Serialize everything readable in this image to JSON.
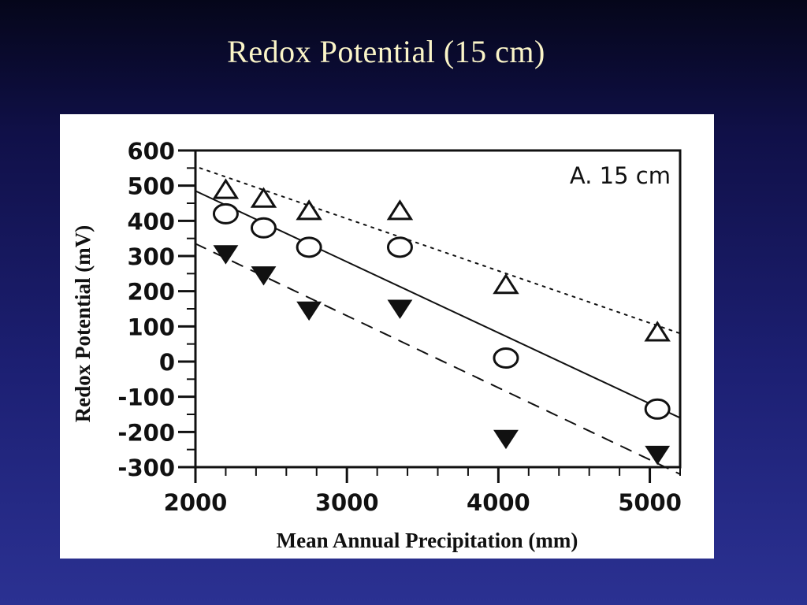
{
  "slide": {
    "title": "Redox Potential (15 cm)"
  },
  "chart_data": {
    "type": "scatter",
    "panel_label": "A. 15 cm",
    "xlabel": "Mean Annual Precipitation (mm)",
    "ylabel": "Redox Potential (mV)",
    "xlim": [
      2000,
      5200
    ],
    "ylim": [
      -300,
      600
    ],
    "x_ticks": [
      2000,
      3000,
      4000,
      5000
    ],
    "y_ticks": [
      600,
      500,
      400,
      300,
      200,
      100,
      0,
      -100,
      -200,
      -300
    ],
    "legend": "none",
    "grid": false,
    "series": [
      {
        "marker": "open-triangle",
        "x": [
          2200,
          2450,
          2750,
          3350,
          4050,
          5050
        ],
        "y": [
          490,
          465,
          430,
          430,
          220,
          85
        ],
        "fit": {
          "style": "dotted",
          "x": [
            2030,
            5200
          ],
          "y": [
            550,
            80
          ]
        }
      },
      {
        "marker": "open-circle",
        "x": [
          2200,
          2450,
          2750,
          3350,
          4050,
          5050
        ],
        "y": [
          420,
          380,
          325,
          325,
          10,
          -135
        ],
        "fit": {
          "style": "solid",
          "x": [
            2000,
            5200
          ],
          "y": [
            485,
            -160
          ]
        }
      },
      {
        "marker": "filled-inverted-triangle",
        "x": [
          2200,
          2450,
          2750,
          3350,
          4050,
          5050
        ],
        "y": [
          305,
          245,
          145,
          150,
          -220,
          -265
        ],
        "fit": {
          "style": "dashed",
          "x": [
            2000,
            5200
          ],
          "y": [
            335,
            -320
          ]
        }
      }
    ]
  }
}
